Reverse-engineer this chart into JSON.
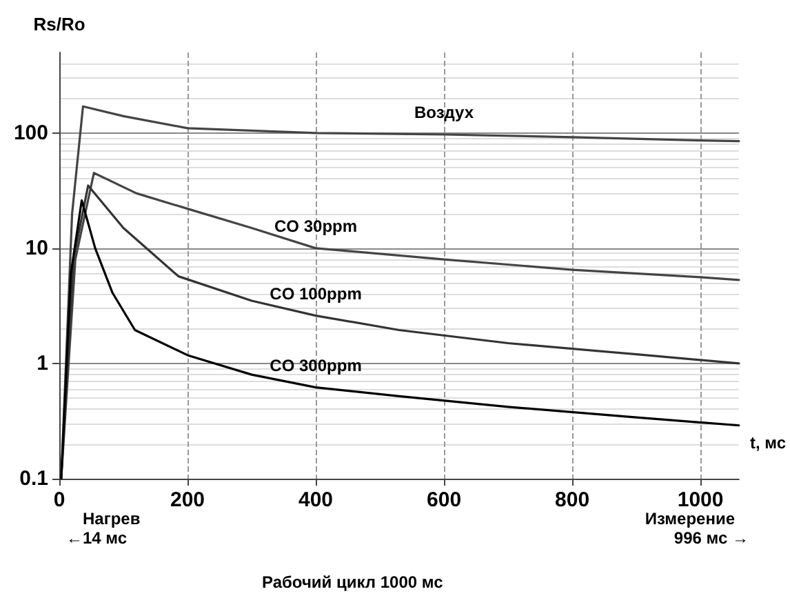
{
  "chart_data": {
    "type": "line",
    "ylabel": "Rs/Ro",
    "xlabel": "t, мс",
    "log": true,
    "grid": true,
    "legend": false,
    "marker": "none",
    "line_style": "solid",
    "xlim": [
      0,
      1060
    ],
    "xticks": [
      0,
      200,
      400,
      600,
      800,
      1000
    ],
    "ylim": [
      0.1,
      500
    ],
    "yticks": [
      0.1,
      1,
      10,
      100
    ],
    "series": [
      {
        "name": "Воздух",
        "color": "#444444",
        "x": [
          3,
          20,
          37,
          100,
          200,
          400,
          600,
          800,
          1000,
          1060
        ],
        "values": [
          0.1,
          20,
          170,
          140,
          110,
          100,
          97,
          92,
          86,
          85
        ]
      },
      {
        "name": "CO 30ppm",
        "color": "#444444",
        "x": [
          3,
          25,
          54,
          120,
          200,
          300,
          400,
          600,
          800,
          1000,
          1060
        ],
        "values": [
          0.1,
          8,
          45,
          30,
          22,
          15,
          10,
          8,
          6.5,
          5.6,
          5.3
        ]
      },
      {
        "name": "CO 100ppm",
        "color": "#333333",
        "x": [
          3,
          22,
          45,
          100,
          186,
          300,
          400,
          530,
          700,
          900,
          1060
        ],
        "values": [
          0.1,
          8,
          35,
          15,
          5.7,
          3.5,
          2.6,
          1.95,
          1.5,
          1.2,
          1.0
        ]
      },
      {
        "name": "CO 300ppm",
        "color": "#000000",
        "x": [
          3,
          18,
          35,
          56,
          83,
          118,
          200,
          300,
          400,
          530,
          700,
          900,
          1060
        ],
        "values": [
          0.1,
          6,
          26,
          10,
          4.1,
          1.95,
          1.18,
          0.8,
          0.62,
          0.52,
          0.42,
          0.34,
          0.29
        ]
      }
    ],
    "annotations": [
      "Нагрев",
      "←14 мс",
      "Измерение",
      "996 мс →",
      "Рабочий цикл 1000 мс"
    ]
  }
}
